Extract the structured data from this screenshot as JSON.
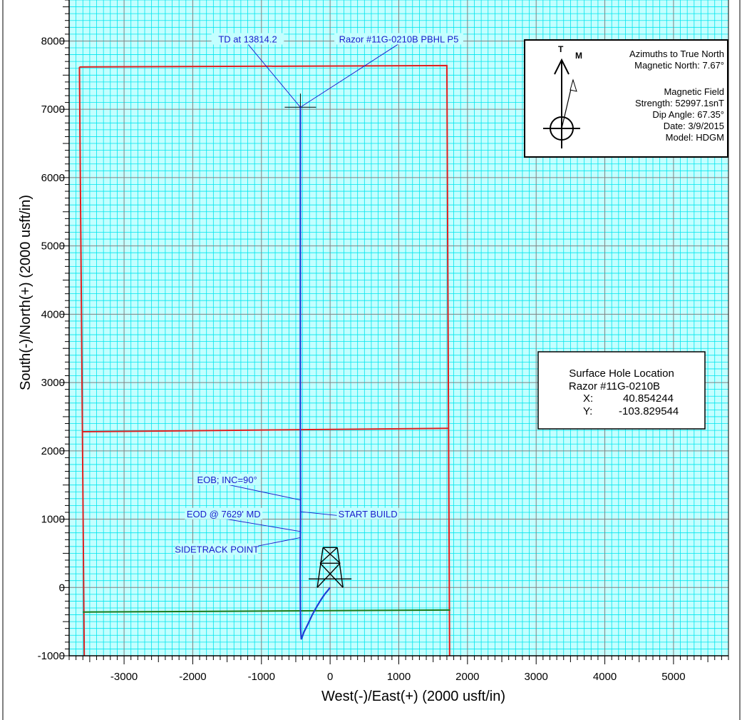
{
  "chart_data": {
    "type": "line",
    "xlabel": "West(-)/East(+) (2000 usft/in)",
    "ylabel": "South(-)/North(+) (2000 usft/in)",
    "xlim": [
      -3800,
      5800
    ],
    "ylim": [
      -1000,
      8600
    ],
    "x_ticks": [
      -3000,
      -2000,
      -1000,
      0,
      1000,
      2000,
      3000,
      4000,
      5000
    ],
    "y_ticks": [
      -1000,
      0,
      1000,
      2000,
      3000,
      4000,
      5000,
      6000,
      7000,
      8000
    ],
    "grid": {
      "minor": 100,
      "major": 1000,
      "on": true
    },
    "wellpath": {
      "points": [
        [
          0,
          0
        ],
        [
          -30,
          -40
        ],
        [
          -80,
          -100
        ],
        [
          -140,
          -190
        ],
        [
          -200,
          -290
        ],
        [
          -260,
          -400
        ],
        [
          -320,
          -530
        ],
        [
          -380,
          -650
        ],
        [
          -420,
          -760
        ],
        [
          -430,
          -600
        ],
        [
          -433,
          -200
        ],
        [
          -435,
          300
        ],
        [
          -433,
          700
        ],
        [
          -430,
          1100
        ],
        [
          -433,
          2300
        ],
        [
          -433,
          5000
        ],
        [
          -433,
          7030
        ]
      ],
      "color": "#1f3fd6"
    },
    "target_marker": {
      "x": -433,
      "y": 7030,
      "label_top": 7230
    },
    "boundaries": [
      {
        "color": "#e02020",
        "points": [
          [
            -3650,
            7620
          ],
          [
            1700,
            7640
          ],
          [
            1740,
            -1000
          ]
        ]
      },
      {
        "color": "#e02020",
        "points": [
          [
            -3650,
            7620
          ],
          [
            -3580,
            -1000
          ]
        ]
      },
      {
        "color": "#e02020",
        "points": [
          [
            -3600,
            2280
          ],
          [
            1720,
            2330
          ]
        ]
      },
      {
        "color": "#1a7a1a",
        "points": [
          [
            -3600,
            -360
          ],
          [
            1750,
            -330
          ]
        ]
      }
    ],
    "rig": {
      "x": 0,
      "y": 0
    },
    "annotations": [
      {
        "text": "TD at 13814.2",
        "x": -1200,
        "y": 8000,
        "tx": -433,
        "ty": 7030,
        "align": "middle"
      },
      {
        "text": "Razor #11G-0210B PBHL P5",
        "x": 1000,
        "y": 8000,
        "tx": -433,
        "ty": 7030,
        "align": "middle"
      },
      {
        "text": "EOB; INC=90°",
        "x": -1500,
        "y": 1550,
        "tx": -433,
        "ty": 1280,
        "align": "middle"
      },
      {
        "text": "START BUILD",
        "x": 550,
        "y": 1050,
        "tx": -433,
        "ty": 1110,
        "align": "middle"
      },
      {
        "text": "EOD @ 7629' MD",
        "x": -1550,
        "y": 1050,
        "tx": -433,
        "ty": 820,
        "align": "middle"
      },
      {
        "text": "SIDETRACK POINT",
        "x": -1650,
        "y": 530,
        "tx": -433,
        "ty": 730,
        "align": "middle"
      }
    ]
  },
  "north_box": {
    "t_label": "T",
    "m_label": "M",
    "line1": "Azimuths to True North",
    "line2": "Magnetic North: 7.67°",
    "line3": "Magnetic Field",
    "line4": "Strength: 52997.1snT",
    "line5": "Dip Angle: 67.35°",
    "line6": "Date: 3/9/2015",
    "line7": "Model: HDGM"
  },
  "surface_box": {
    "title": "Surface Hole Location",
    "well": "Razor #11G-0210B",
    "x_label": "X:",
    "x_value": "40.854244",
    "y_label": "Y:",
    "y_value": "-103.829544"
  },
  "colors": {
    "grid_minor": "#00e5ee",
    "grid_major": "#808080",
    "background": "#c4ffff",
    "text_blue": "#1a1acc"
  }
}
